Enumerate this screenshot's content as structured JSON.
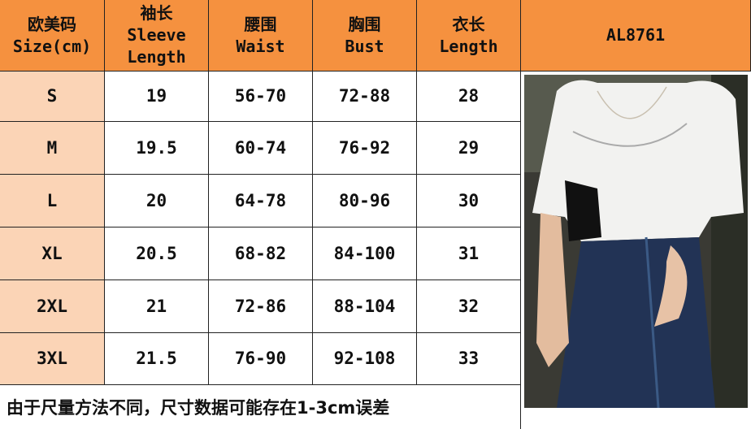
{
  "header": {
    "size": [
      "欧美码",
      "Size(cm)"
    ],
    "sleeve": [
      "袖长",
      "Sleeve",
      "Length"
    ],
    "waist": [
      "腰围",
      "Waist"
    ],
    "bust": [
      "胸围",
      "Bust"
    ],
    "length": [
      "衣长",
      "Length"
    ],
    "model_code": "AL8761"
  },
  "rows": [
    {
      "size": "S",
      "sleeve": "19",
      "waist": "56-70",
      "bust": "72-88",
      "length": "28"
    },
    {
      "size": "M",
      "sleeve": "19.5",
      "waist": "60-74",
      "bust": "76-92",
      "length": "29"
    },
    {
      "size": "L",
      "sleeve": "20",
      "waist": "64-78",
      "bust": "80-96",
      "length": "30"
    },
    {
      "size": "XL",
      "sleeve": "20.5",
      "waist": "68-82",
      "bust": "84-100",
      "length": "31"
    },
    {
      "size": "2XL",
      "sleeve": "21",
      "waist": "72-86",
      "bust": "88-104",
      "length": "32"
    },
    {
      "size": "3XL",
      "sleeve": "21.5",
      "waist": "76-90",
      "bust": "92-108",
      "length": "33"
    }
  ],
  "footer_note": "由于尺量方法不同，尺寸数据可能存在1-3cm误差",
  "colors": {
    "header": "#F5913F",
    "size_column": "#FBD4B6",
    "border": "#222222"
  }
}
